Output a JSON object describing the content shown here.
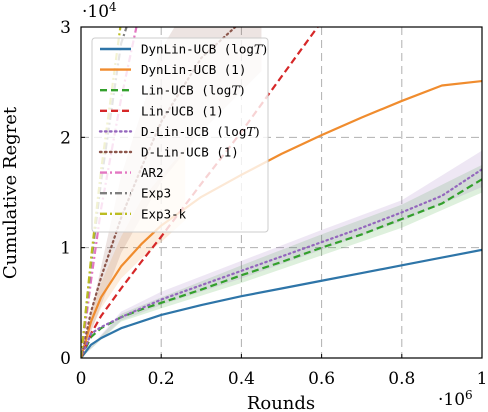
{
  "chart_data": {
    "type": "line",
    "title": "",
    "xlabel": "Rounds",
    "ylabel": "Cumulative Regret",
    "x_multiplier": "·10",
    "x_multiplier_exp": "6",
    "y_multiplier": "·10",
    "y_multiplier_exp": "4",
    "xlim": [
      0,
      1000000
    ],
    "ylim": [
      0,
      30000
    ],
    "x_ticks": [
      0,
      200000,
      400000,
      600000,
      800000,
      1000000
    ],
    "x_tick_labels": [
      "0",
      "0.2",
      "0.4",
      "0.6",
      "0.8",
      "1"
    ],
    "y_ticks": [
      0,
      10000,
      20000,
      30000
    ],
    "y_tick_labels": [
      "0",
      "1",
      "2",
      "3"
    ],
    "grid": true,
    "legend_position": "upper-left",
    "x": [
      0,
      25000,
      50000,
      100000,
      150000,
      200000,
      300000,
      400000,
      500000,
      600000,
      700000,
      800000,
      900000,
      1000000
    ],
    "series": [
      {
        "name": "DynLin-UCB (log",
        "name_italic": "T",
        "name_suffix": ")",
        "color": "#2e75a8",
        "dash": "solid",
        "values": [
          0,
          1200,
          1800,
          2700,
          3300,
          3900,
          4800,
          5600,
          6300,
          7000,
          7700,
          8400,
          9100,
          9800
        ]
      },
      {
        "name": "DynLin-UCB (1)",
        "name_italic": "",
        "name_suffix": "",
        "color": "#f08c2e",
        "dash": "solid",
        "values": [
          0,
          3300,
          5500,
          8300,
          10300,
          12000,
          14600,
          16600,
          18500,
          20200,
          21800,
          23300,
          24700,
          25100
        ],
        "band": [
          [
            0,
            0,
            0
          ],
          [
            25000,
            2500,
            4000
          ],
          [
            50000,
            4500,
            6800
          ],
          [
            100000,
            7200,
            11000
          ],
          [
            150000,
            9000,
            14300
          ],
          [
            200000,
            10500,
            16500
          ],
          [
            260000,
            12500,
            19000
          ]
        ]
      },
      {
        "name": "Lin-UCB (log",
        "name_italic": "T",
        "name_suffix": ")",
        "color": "#33a02c",
        "dash": "dashed",
        "values": [
          0,
          1900,
          2700,
          3700,
          4400,
          5000,
          6200,
          7500,
          8700,
          10000,
          11200,
          12600,
          14000,
          16200
        ],
        "band": [
          [
            0,
            0,
            0
          ],
          [
            100000,
            3300,
            4000
          ],
          [
            200000,
            4500,
            5500
          ],
          [
            400000,
            6800,
            8400
          ],
          [
            600000,
            9300,
            11200
          ],
          [
            800000,
            11800,
            13900
          ],
          [
            1000000,
            15000,
            17500
          ]
        ]
      },
      {
        "name": "Lin-UCB (1)",
        "name_italic": "",
        "name_suffix": "",
        "color": "#d62728",
        "dash": "dashed",
        "values": [
          0,
          2200,
          3800,
          6300,
          8700,
          11000,
          15800,
          20500,
          25500,
          30500,
          null,
          null,
          null,
          null
        ]
      },
      {
        "name": "D-Lin-UCB (log",
        "name_italic": "T",
        "name_suffix": ")",
        "color": "#9467bd",
        "dash": "dotted",
        "values": [
          0,
          2200,
          2800,
          3700,
          4500,
          5300,
          6600,
          7900,
          9200,
          10500,
          11800,
          13200,
          14700,
          17100
        ],
        "band": [
          [
            0,
            0,
            0
          ],
          [
            100000,
            3400,
            4200
          ],
          [
            200000,
            4800,
            6000
          ],
          [
            400000,
            7200,
            8800
          ],
          [
            600000,
            9800,
            11600
          ],
          [
            800000,
            12400,
            14300
          ],
          [
            1000000,
            15500,
            18800
          ]
        ]
      },
      {
        "name": "D-Lin-UCB (1)",
        "name_italic": "",
        "name_suffix": "",
        "color": "#8c564b",
        "dash": "dotted",
        "values": [
          0,
          4200,
          7300,
          12700,
          17200,
          21400,
          27200,
          30500,
          null,
          null,
          null,
          null,
          null,
          null
        ],
        "band": [
          [
            0,
            0,
            0
          ],
          [
            100000,
            9500,
            16500
          ],
          [
            200000,
            16000,
            28000
          ],
          [
            300000,
            20500,
            34000
          ],
          [
            450000,
            26000,
            34000
          ]
        ]
      },
      {
        "name": "AR2",
        "name_italic": "",
        "name_suffix": "",
        "color": "#e377c2",
        "dash": "dashdot",
        "values": [
          0,
          7000,
          13500,
          23500,
          32000,
          null,
          null,
          null,
          null,
          null,
          null,
          null,
          null,
          null
        ]
      },
      {
        "name": "Exp3",
        "name_italic": "",
        "name_suffix": "",
        "color": "#7f7f7f",
        "dash": "dashdot",
        "values": [
          0,
          8500,
          16000,
          28500,
          34000,
          null,
          null,
          null,
          null,
          null,
          null,
          null,
          null,
          null
        ]
      },
      {
        "name": "Exp3-k",
        "name_italic": "",
        "name_suffix": "",
        "color": "#bcbd22",
        "dash": "dashdot",
        "values": [
          0,
          9000,
          17000,
          30500,
          34000,
          null,
          null,
          null,
          null,
          null,
          null,
          null,
          null,
          null
        ]
      }
    ]
  }
}
